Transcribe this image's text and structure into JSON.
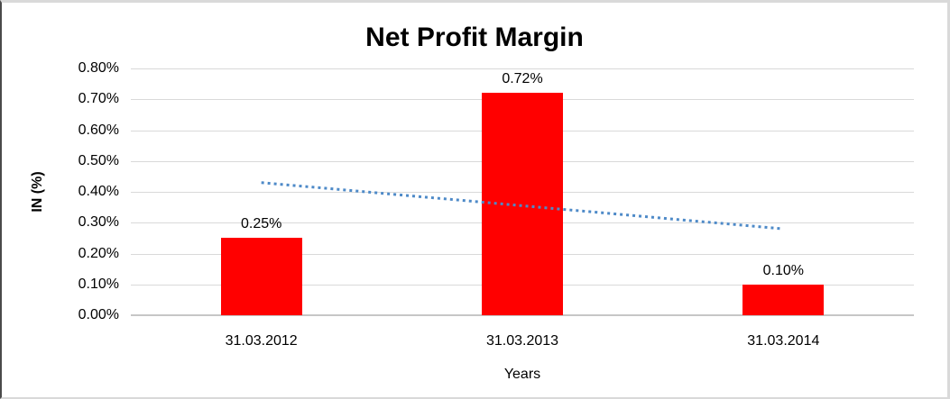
{
  "chart_data": {
    "type": "bar",
    "title": "Net Profit Margin",
    "categories": [
      "31.03.2012",
      "31.03.2013",
      "31.03.2014"
    ],
    "values": [
      0.25,
      0.72,
      0.1
    ],
    "value_labels": [
      "0.25%",
      "0.72%",
      "0.10%"
    ],
    "xlabel": "Years",
    "ylabel": "IN (%)",
    "ylim": [
      0,
      0.8
    ],
    "ytick_step": 0.1,
    "ytick_labels": [
      "0.00%",
      "0.10%",
      "0.20%",
      "0.30%",
      "0.40%",
      "0.50%",
      "0.60%",
      "0.70%",
      "0.80%"
    ],
    "grid": true,
    "legend": null,
    "bar_color": "#ff0000",
    "gridline_color": "#d9d9d9",
    "axis_line_color": "#c6c6c6",
    "text_color": "#000000",
    "trendline": {
      "type": "linear",
      "style": "dotted",
      "color": "#4e8ac8",
      "start_value": 0.43,
      "end_value": 0.28
    }
  }
}
